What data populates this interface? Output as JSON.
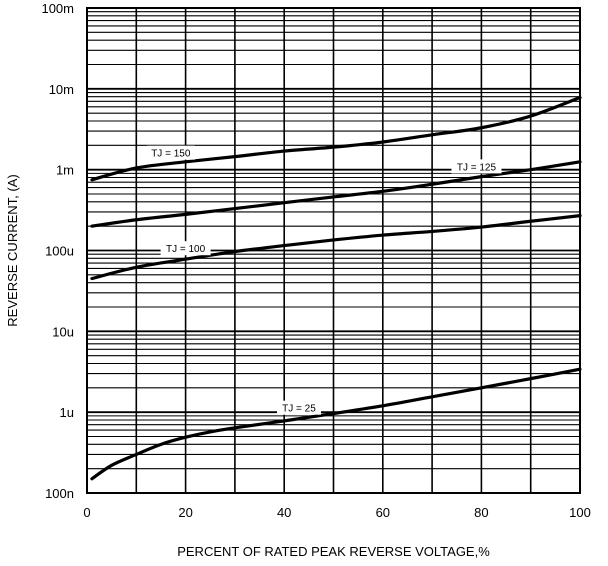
{
  "chart_data": {
    "type": "line",
    "xlabel": "PERCENT OF RATED PEAK REVERSE VOLTAGE,%",
    "ylabel": "REVERSE CURRENT, (A)",
    "xlim": [
      0,
      100
    ],
    "ylim": [
      1e-07,
      0.1
    ],
    "yscale": "log",
    "grid": true,
    "x_ticks": [
      {
        "value": 0,
        "label": "0"
      },
      {
        "value": 20,
        "label": "20"
      },
      {
        "value": 40,
        "label": "40"
      },
      {
        "value": 60,
        "label": "60"
      },
      {
        "value": 80,
        "label": "80"
      },
      {
        "value": 100,
        "label": "100"
      }
    ],
    "y_ticks": [
      {
        "value": 1e-07,
        "label": "100n"
      },
      {
        "value": 1e-06,
        "label": "1u"
      },
      {
        "value": 1e-05,
        "label": "10u"
      },
      {
        "value": 0.0001,
        "label": "100u"
      },
      {
        "value": 0.001,
        "label": "1m"
      },
      {
        "value": 0.01,
        "label": "10m"
      },
      {
        "value": 0.1,
        "label": "100m"
      }
    ],
    "series": [
      {
        "name": "TJ = 150",
        "x": [
          1,
          10,
          20,
          30,
          40,
          50,
          60,
          70,
          80,
          90,
          100
        ],
        "y": [
          0.00075,
          0.00105,
          0.00125,
          0.00145,
          0.0017,
          0.0019,
          0.0022,
          0.0027,
          0.0033,
          0.0046,
          0.0078
        ]
      },
      {
        "name": "TJ = 125",
        "x": [
          1,
          10,
          20,
          30,
          40,
          50,
          60,
          70,
          80,
          90,
          100
        ],
        "y": [
          0.0002,
          0.00024,
          0.00028,
          0.00033,
          0.00039,
          0.00046,
          0.00054,
          0.00066,
          0.00082,
          0.001,
          0.00125
        ]
      },
      {
        "name": "TJ = 100",
        "x": [
          1,
          10,
          20,
          30,
          40,
          50,
          60,
          70,
          80,
          90,
          100
        ],
        "y": [
          4.5e-05,
          6.2e-05,
          7.8e-05,
          9.7e-05,
          0.000115,
          0.000135,
          0.000155,
          0.000172,
          0.000195,
          0.00023,
          0.00027
        ]
      },
      {
        "name": "TJ = 25",
        "x": [
          1,
          5,
          10,
          15,
          20,
          25,
          30,
          40,
          50,
          60,
          70,
          80,
          90,
          100
        ],
        "y": [
          1.5e-07,
          2.2e-07,
          3e-07,
          4e-07,
          4.9e-07,
          5.7e-07,
          6.4e-07,
          7.8e-07,
          9.6e-07,
          1.2e-06,
          1.55e-06,
          2e-06,
          2.6e-06,
          3.4e-06
        ]
      }
    ]
  }
}
